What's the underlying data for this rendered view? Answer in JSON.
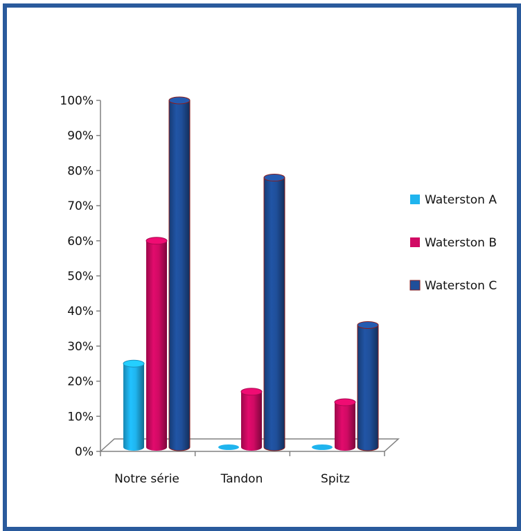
{
  "chart_data": {
    "type": "bar",
    "categories": [
      "Notre série",
      "Tandon",
      "Spitz"
    ],
    "series": [
      {
        "name": "Waterston A",
        "values": [
          25,
          0,
          0
        ]
      },
      {
        "name": "Waterston B",
        "values": [
          60,
          17,
          14
        ]
      },
      {
        "name": "Waterston C",
        "values": [
          100,
          78,
          36
        ]
      }
    ],
    "ylim": [
      0,
      100
    ],
    "yticks": [
      "0%",
      "10%",
      "20%",
      "30%",
      "40%",
      "50%",
      "60%",
      "70%",
      "80%",
      "90%",
      "100%"
    ],
    "legend": "right",
    "grid": false,
    "colors": {
      "Waterston A": "#1fb4ee",
      "Waterston B": "#d10a64",
      "Waterston C": "#1f4f9a"
    }
  }
}
